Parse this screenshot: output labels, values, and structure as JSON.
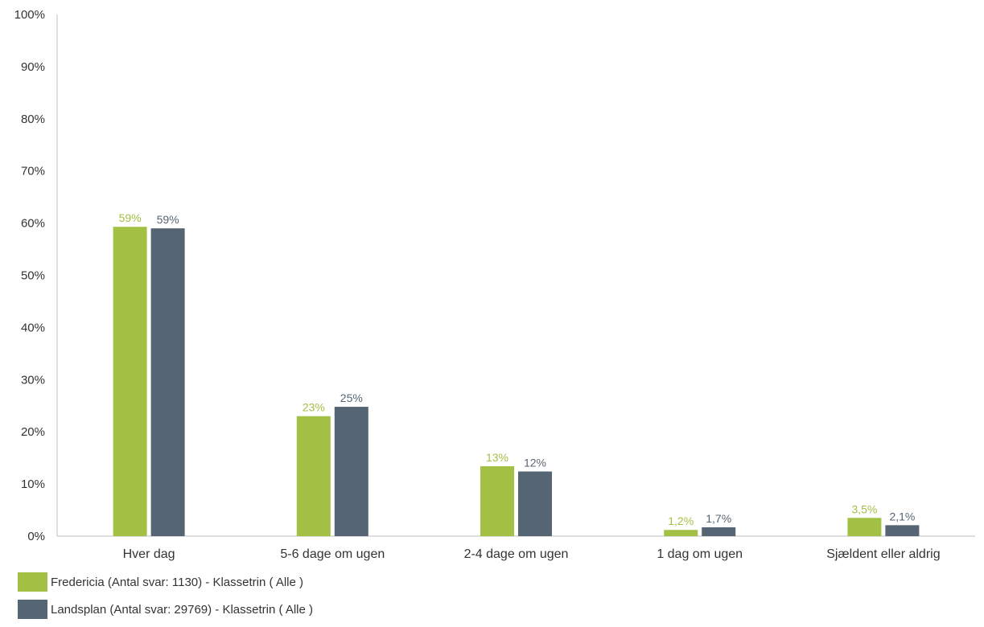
{
  "chart_data": {
    "type": "bar",
    "categories": [
      "Hver dag",
      "5-6 dage om ugen",
      "2-4 dage om ugen",
      "1 dag om ugen",
      "Sjældent eller aldrig"
    ],
    "series": [
      {
        "name": "Fredericia (Antal svar: 1130)  - Klassetrin ( Alle )",
        "color": "#a2c044",
        "values": [
          59.3,
          23.0,
          13.4,
          1.2,
          3.5
        ],
        "labels": [
          "59%",
          "23%",
          "13%",
          "1,2%",
          "3,5%"
        ]
      },
      {
        "name": "Landsplan (Antal svar: 29769)  - Klassetrin ( Alle )",
        "color": "#566573",
        "values": [
          59.0,
          24.8,
          12.4,
          1.7,
          2.1
        ],
        "labels": [
          "59%",
          "25%",
          "12%",
          "1,7%",
          "2,1%"
        ]
      }
    ],
    "y_ticks": [
      "0%",
      "10%",
      "20%",
      "30%",
      "40%",
      "50%",
      "60%",
      "70%",
      "80%",
      "90%",
      "100%"
    ],
    "ylim": [
      0,
      100
    ],
    "grid": false,
    "legend_position": "bottom-left"
  }
}
